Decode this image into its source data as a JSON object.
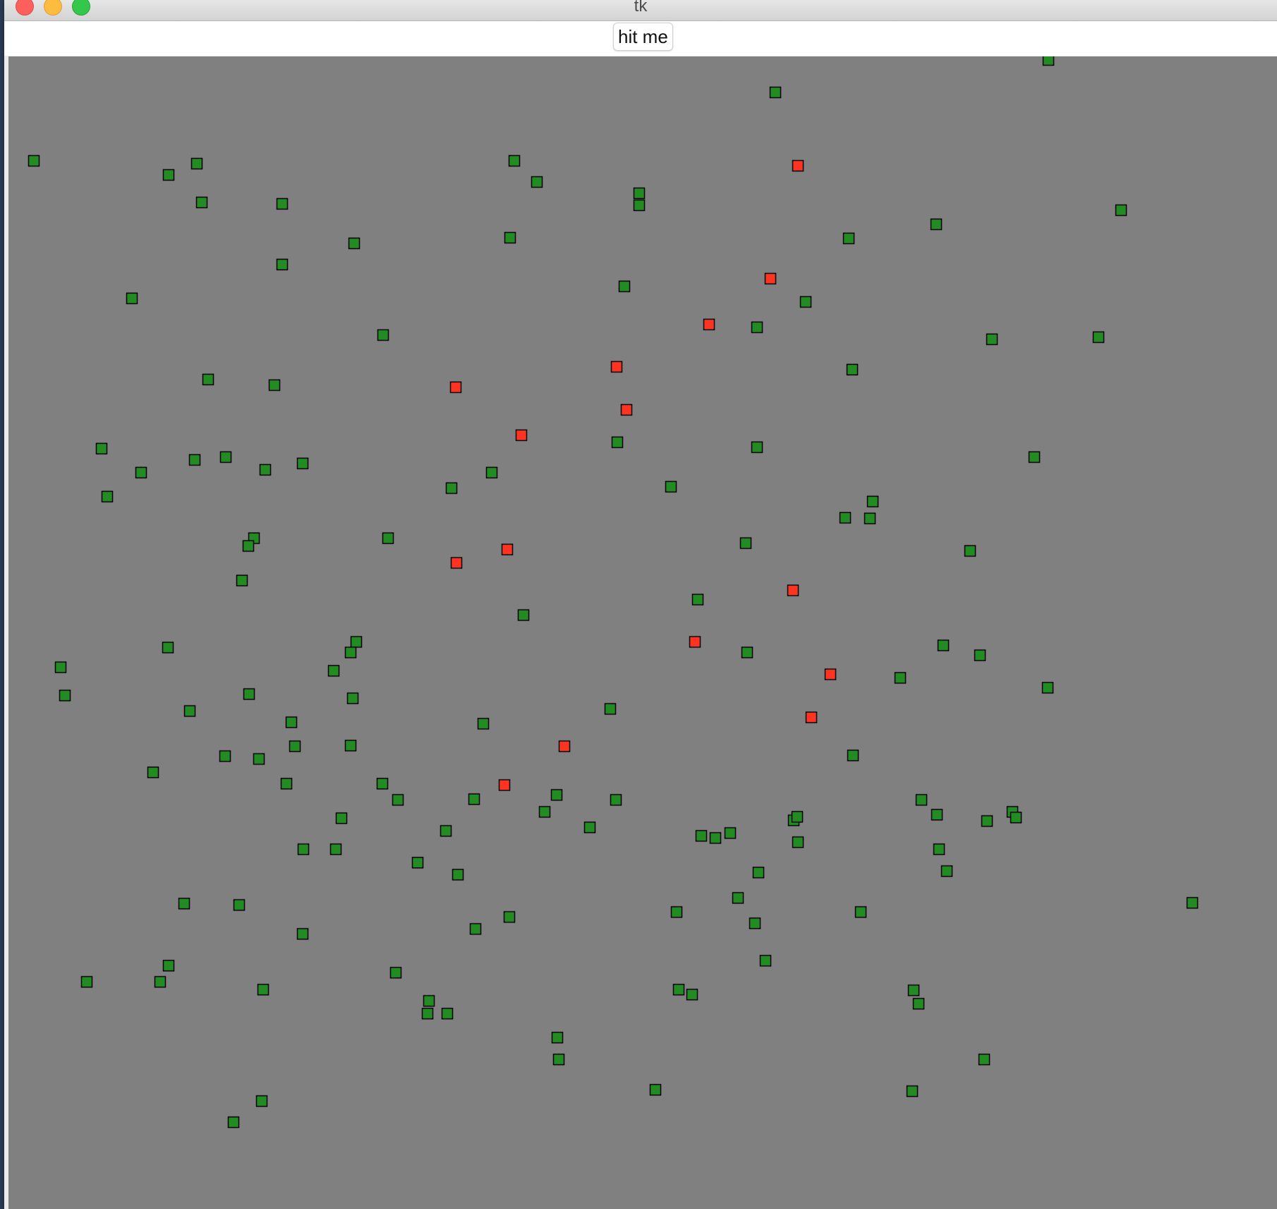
{
  "window": {
    "title": "tk"
  },
  "toolbar": {
    "button_label": "hit me"
  },
  "colors": {
    "canvas_bg": "#808080",
    "green_square": "#228b22",
    "red_square": "#ff3322",
    "square_outline": "#000000"
  }
}
